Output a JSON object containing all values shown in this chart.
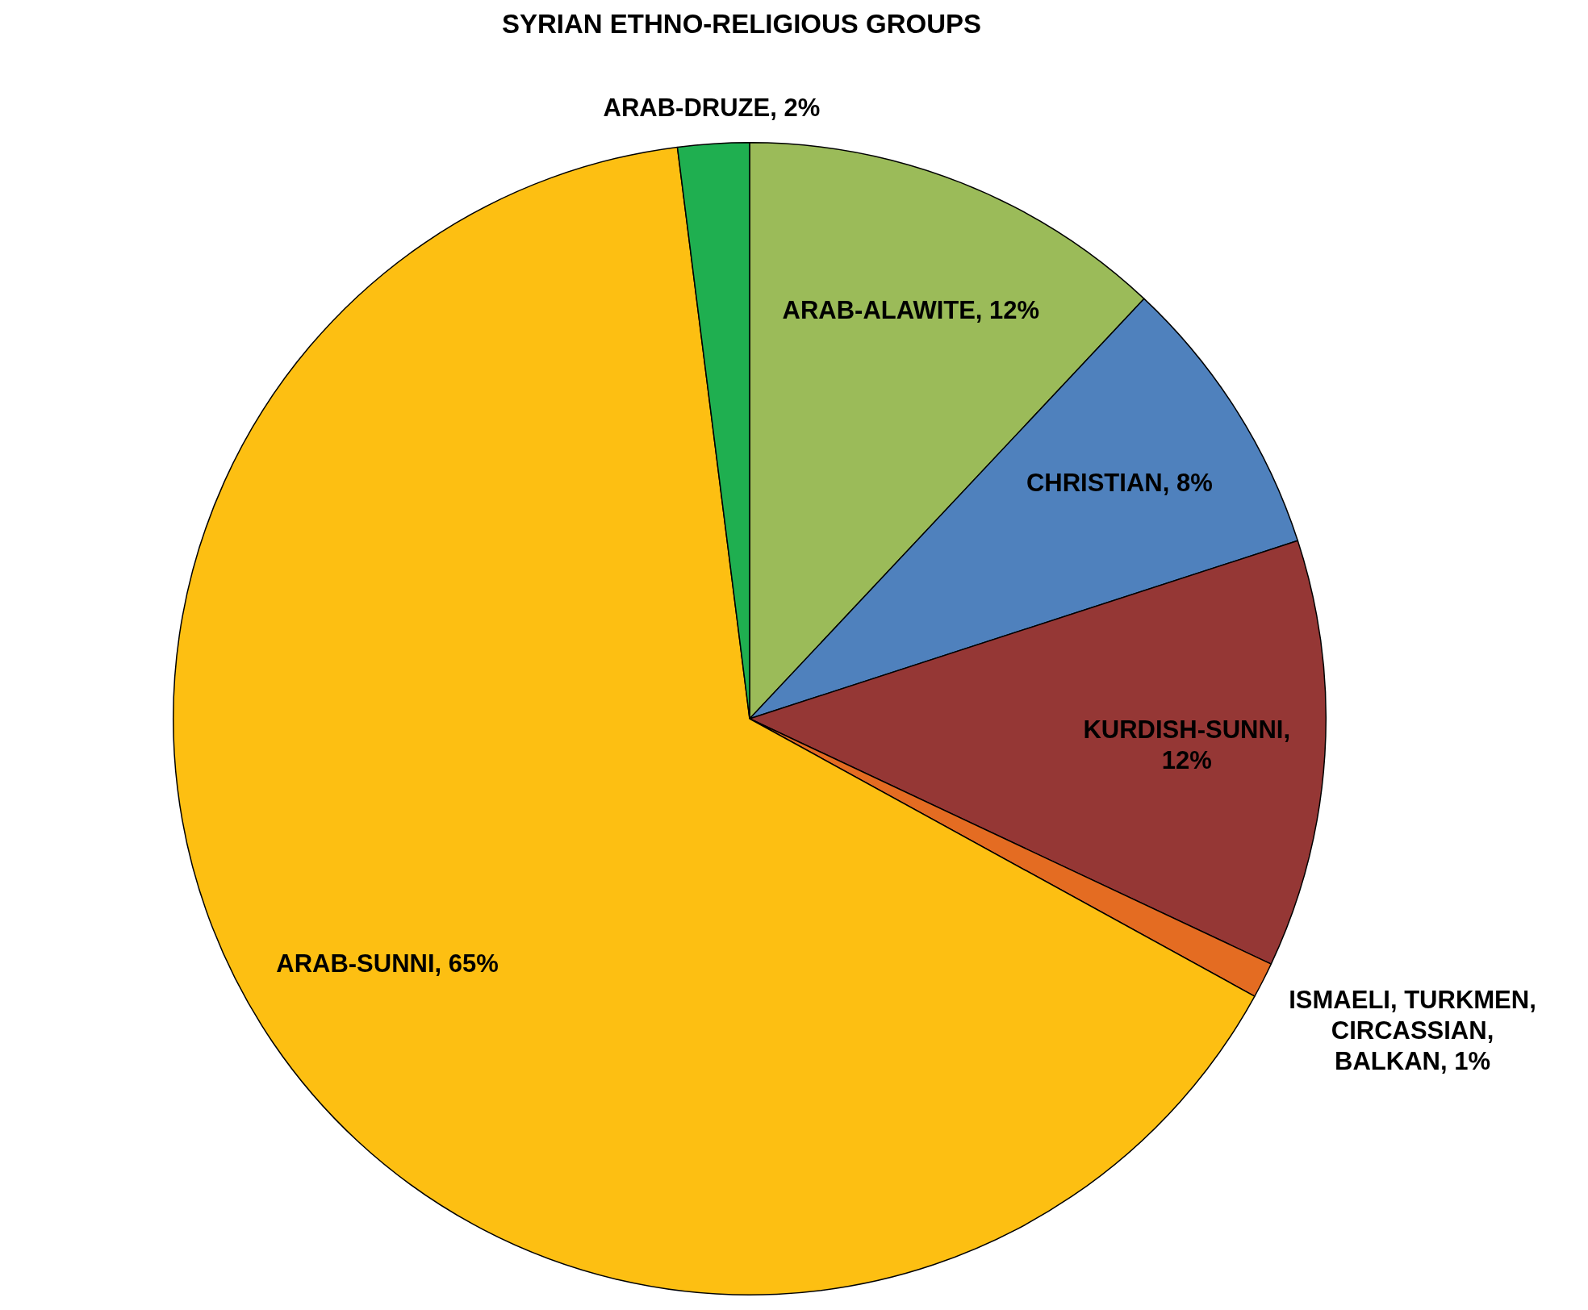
{
  "chart_data": {
    "type": "pie",
    "title": "SYRIAN ETHNO-RELIGIOUS GROUPS",
    "categories": [
      "ARAB-ALAWITE, 12%",
      "CHRISTIAN, 8%",
      "KURDISH-SUNNI, 12%",
      "ISMAELI, TURKMEN, CIRCASSIAN, BALKAN, 1%",
      "ARAB-SUNNI, 65%",
      "ARAB-DRUZE, 2%"
    ],
    "values": [
      12,
      8,
      12,
      1,
      65,
      2
    ],
    "colors": [
      "#9bbb59",
      "#4f81bd",
      "#953735",
      "#e46c22",
      "#fdbf12",
      "#1faf50"
    ]
  }
}
